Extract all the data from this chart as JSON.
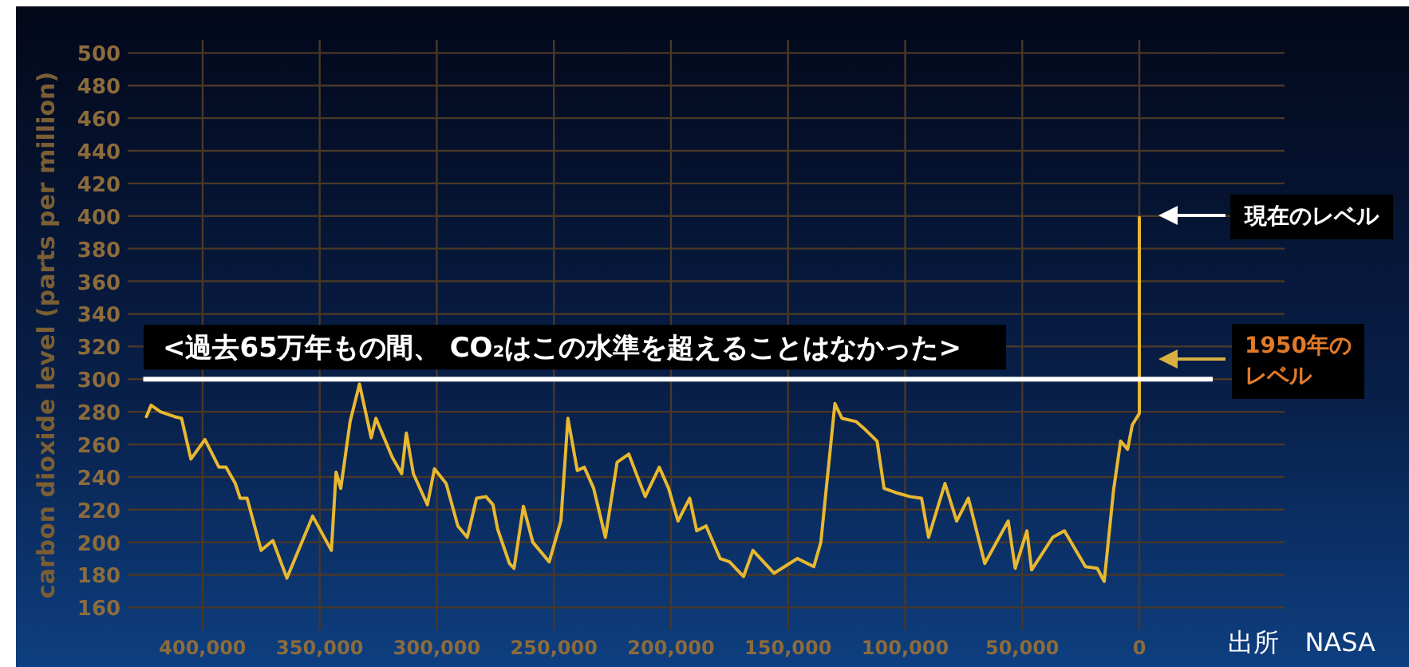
{
  "chart_data": {
    "type": "line",
    "ylabel": "carbon dioxide level (parts per million)",
    "xlim": [
      432000,
      -62000
    ],
    "ylim": [
      146,
      508
    ],
    "xticks": [
      {
        "value": 400000,
        "label": "400,000"
      },
      {
        "value": 350000,
        "label": "350,000"
      },
      {
        "value": 300000,
        "label": "300,000"
      },
      {
        "value": 250000,
        "label": "250,000"
      },
      {
        "value": 200000,
        "label": "200,000"
      },
      {
        "value": 150000,
        "label": "150,000"
      },
      {
        "value": 100000,
        "label": "100,000"
      },
      {
        "value": 50000,
        "label": "50,000"
      },
      {
        "value": 0,
        "label": "0"
      }
    ],
    "yticks": [
      160,
      180,
      200,
      220,
      240,
      260,
      280,
      300,
      320,
      340,
      360,
      380,
      400,
      420,
      440,
      460,
      480,
      500
    ],
    "grid": true,
    "line_style": "solid",
    "x": [
      424000,
      422000,
      418000,
      412000,
      409000,
      405000,
      399000,
      393000,
      390000,
      386000,
      384000,
      381000,
      375000,
      370000,
      364000,
      353000,
      345000,
      343000,
      341000,
      337000,
      333000,
      328000,
      326000,
      319000,
      315000,
      313000,
      310000,
      304000,
      301000,
      296000,
      291000,
      287000,
      283000,
      279000,
      276000,
      274000,
      269000,
      267000,
      263000,
      259000,
      252000,
      247000,
      244000,
      240000,
      237000,
      233000,
      228000,
      223000,
      218000,
      214000,
      211000,
      205000,
      201000,
      197000,
      192000,
      189000,
      185000,
      179000,
      175000,
      169000,
      165000,
      156000,
      146000,
      139000,
      136000,
      130000,
      127000,
      121000,
      117000,
      112000,
      109000,
      103000,
      98000,
      93000,
      90000,
      83000,
      78000,
      73000,
      66000,
      56000,
      53000,
      48000,
      46000,
      37000,
      32000,
      23000,
      18000,
      15000,
      11000,
      8000,
      5000,
      3000,
      0,
      0
    ],
    "series": [
      {
        "color": "#e8b830",
        "values": [
          277,
          284,
          280,
          277,
          276,
          251,
          263,
          246,
          246,
          236,
          227,
          227,
          195,
          201,
          178,
          216,
          195,
          243,
          233,
          274,
          297,
          264,
          276,
          252,
          242,
          267,
          242,
          223,
          245,
          236,
          210,
          203,
          227,
          228,
          223,
          208,
          187,
          184,
          222,
          200,
          188,
          213,
          276,
          244,
          246,
          233,
          203,
          249,
          254,
          239,
          228,
          246,
          233,
          213,
          227,
          207,
          210,
          190,
          188,
          179,
          195,
          181,
          190,
          185,
          200,
          285,
          276,
          274,
          269,
          262,
          233,
          230,
          228,
          227,
          203,
          236,
          213,
          227,
          187,
          213,
          184,
          207,
          183,
          203,
          207,
          185,
          184,
          176,
          232,
          262,
          257,
          272,
          279,
          399
        ]
      }
    ],
    "ref_lines": [
      {
        "axis": "y",
        "value": 300,
        "label": "<過去65万年もの間、 CO₂はこの水準を超えることはなかった>",
        "color": "#ffffff"
      }
    ],
    "annotations": [
      "現在のレベル",
      "1950年のレベル",
      "出所　NASA"
    ]
  }
}
